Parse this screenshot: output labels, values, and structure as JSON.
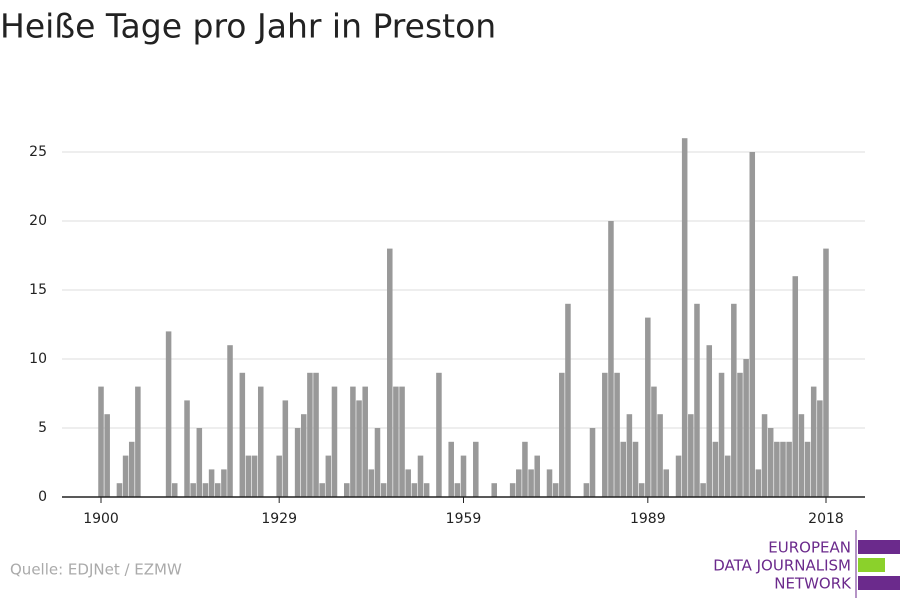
{
  "chart_data": {
    "type": "bar",
    "title": "Heiße Tage pro Jahr in Preston",
    "x": [
      1900,
      1901,
      1902,
      1903,
      1904,
      1905,
      1906,
      1907,
      1908,
      1909,
      1910,
      1911,
      1912,
      1913,
      1914,
      1915,
      1916,
      1917,
      1918,
      1919,
      1920,
      1921,
      1922,
      1923,
      1924,
      1925,
      1926,
      1927,
      1928,
      1929,
      1930,
      1931,
      1932,
      1933,
      1934,
      1935,
      1936,
      1937,
      1938,
      1939,
      1940,
      1941,
      1942,
      1943,
      1944,
      1945,
      1946,
      1947,
      1948,
      1949,
      1950,
      1951,
      1952,
      1953,
      1954,
      1955,
      1956,
      1957,
      1958,
      1959,
      1960,
      1961,
      1962,
      1963,
      1964,
      1965,
      1966,
      1967,
      1968,
      1969,
      1970,
      1971,
      1972,
      1973,
      1974,
      1975,
      1976,
      1977,
      1978,
      1979,
      1980,
      1981,
      1982,
      1983,
      1984,
      1985,
      1986,
      1987,
      1988,
      1989,
      1990,
      1991,
      1992,
      1993,
      1994,
      1995,
      1996,
      1997,
      1998,
      1999,
      2000,
      2001,
      2002,
      2003,
      2004,
      2005,
      2006,
      2007,
      2008,
      2009,
      2010,
      2011,
      2012,
      2013,
      2014,
      2015,
      2016,
      2017,
      2018
    ],
    "values": [
      8,
      6,
      0,
      1,
      3,
      4,
      8,
      0,
      0,
      0,
      0,
      12,
      1,
      0,
      7,
      1,
      5,
      1,
      2,
      1,
      2,
      11,
      0,
      9,
      3,
      3,
      8,
      0,
      0,
      3,
      7,
      0,
      5,
      6,
      9,
      9,
      1,
      3,
      8,
      0,
      1,
      8,
      7,
      8,
      2,
      5,
      1,
      18,
      8,
      8,
      2,
      1,
      3,
      1,
      0,
      9,
      0,
      4,
      1,
      3,
      0,
      4,
      0,
      0,
      1,
      0,
      0,
      1,
      2,
      4,
      2,
      3,
      0,
      2,
      1,
      9,
      14,
      0,
      0,
      1,
      5,
      0,
      9,
      20,
      9,
      4,
      6,
      4,
      1,
      13,
      8,
      6,
      2,
      0,
      3,
      26,
      6,
      14,
      1,
      11,
      4,
      9,
      3,
      14,
      9,
      10,
      25,
      2,
      6,
      5,
      4,
      4,
      4,
      16,
      6,
      4,
      8,
      7,
      18
    ],
    "color": "#999999",
    "xlim": [
      1893.65,
      2024.35
    ],
    "xticks": [
      1900,
      1929,
      1959,
      1989,
      2018
    ],
    "ylim": [
      0,
      27
    ],
    "yticks": [
      0,
      5,
      10,
      15,
      20,
      25
    ],
    "grid": true
  },
  "source": "Quelle: EDJNet / EZMW",
  "logo": [
    "EUROPEAN",
    "DATA JOURNALISM",
    "NETWORK"
  ]
}
